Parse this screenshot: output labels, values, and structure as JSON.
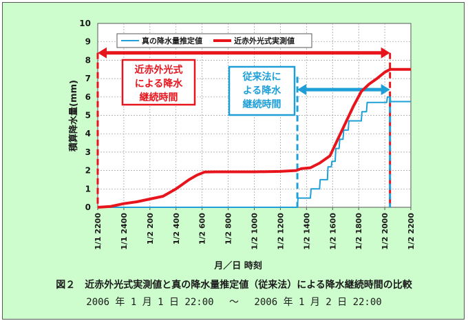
{
  "figure": {
    "caption_title": "図２　近赤外光式実測値と真の降水量推定値（従来法）による降水継続時間の比較",
    "caption_subtitle": "2006 年 1 月 1 日 22:00　 ～　 2006 年 1 月 2 日 22:00"
  },
  "chart_data": {
    "type": "line",
    "title": "",
    "xlabel": "月／日 時刻",
    "ylabel": "積算降水量(mm)",
    "ylim": [
      0,
      10
    ],
    "yticks": [
      0,
      1,
      2,
      3,
      4,
      5,
      6,
      7,
      8,
      9,
      10
    ],
    "xlim": [
      0,
      24
    ],
    "xticks": [
      {
        "x": 0,
        "label": "1/1 2200"
      },
      {
        "x": 2,
        "label": "1/1 2400"
      },
      {
        "x": 4,
        "label": "1/2 200"
      },
      {
        "x": 6,
        "label": "1/2 400"
      },
      {
        "x": 8,
        "label": "1/2 600"
      },
      {
        "x": 10,
        "label": "1/2 800"
      },
      {
        "x": 12,
        "label": "1/2 1000"
      },
      {
        "x": 14,
        "label": "1/2 1200"
      },
      {
        "x": 16,
        "label": "1/2 1400"
      },
      {
        "x": 18,
        "label": "1/2 1600"
      },
      {
        "x": 20,
        "label": "1/2 1800"
      },
      {
        "x": 22,
        "label": "1/2 2000"
      },
      {
        "x": 24,
        "label": "1/2 2200"
      }
    ],
    "grid": true,
    "legend": "top",
    "series": [
      {
        "name": "真の降水量推定値",
        "color": "#1e9fd8",
        "step": true,
        "points": [
          [
            0,
            0
          ],
          [
            15.3,
            0
          ],
          [
            15.35,
            0.5
          ],
          [
            16.3,
            0.5
          ],
          [
            16.35,
            1.0
          ],
          [
            17.0,
            1.0
          ],
          [
            17.05,
            1.5
          ],
          [
            17.6,
            1.5
          ],
          [
            17.65,
            2.2
          ],
          [
            17.9,
            2.2
          ],
          [
            17.95,
            2.5
          ],
          [
            18.2,
            2.5
          ],
          [
            18.25,
            3.2
          ],
          [
            18.5,
            3.2
          ],
          [
            18.55,
            3.7
          ],
          [
            18.8,
            3.7
          ],
          [
            18.85,
            4.2
          ],
          [
            19.2,
            4.2
          ],
          [
            19.25,
            4.7
          ],
          [
            20.2,
            4.7
          ],
          [
            20.25,
            5.2
          ],
          [
            20.6,
            5.2
          ],
          [
            20.65,
            5.7
          ],
          [
            22.15,
            5.7
          ],
          [
            22.2,
            6.0
          ],
          [
            22.4,
            6.0
          ],
          [
            22.45,
            5.75
          ],
          [
            24,
            5.75
          ]
        ]
      },
      {
        "name": "近赤外光式実測値",
        "color": "#e8141c",
        "step": false,
        "points": [
          [
            0,
            0
          ],
          [
            1.0,
            0.05
          ],
          [
            2.0,
            0.2
          ],
          [
            3.0,
            0.3
          ],
          [
            4.0,
            0.45
          ],
          [
            5.0,
            0.6
          ],
          [
            6.0,
            1.0
          ],
          [
            7.0,
            1.5
          ],
          [
            7.6,
            1.75
          ],
          [
            8.2,
            1.92
          ],
          [
            9.0,
            1.93
          ],
          [
            12.0,
            1.93
          ],
          [
            14.0,
            1.95
          ],
          [
            15.2,
            2.0
          ],
          [
            15.6,
            2.1
          ],
          [
            16.3,
            2.15
          ],
          [
            17.0,
            2.4
          ],
          [
            17.8,
            2.8
          ],
          [
            18.4,
            3.7
          ],
          [
            19.0,
            4.6
          ],
          [
            19.6,
            5.5
          ],
          [
            20.2,
            6.3
          ],
          [
            20.8,
            6.7
          ],
          [
            21.4,
            7.0
          ],
          [
            22.0,
            7.35
          ],
          [
            22.4,
            7.5
          ],
          [
            24,
            7.5
          ]
        ]
      }
    ],
    "annotations": [
      {
        "id": "red-span",
        "color": "#e8141c",
        "x_start": 0,
        "x_end": 22.4,
        "arrow_y": 8.4,
        "label_lines": [
          "近赤外光式",
          "による降水",
          "継続時間"
        ]
      },
      {
        "id": "blue-span",
        "color": "#1e9fd8",
        "x_start": 15.3,
        "x_end": 22.4,
        "arrow_y": 6.4,
        "label_lines": [
          "従来法に",
          "よる降水",
          "継続時間"
        ]
      }
    ]
  }
}
